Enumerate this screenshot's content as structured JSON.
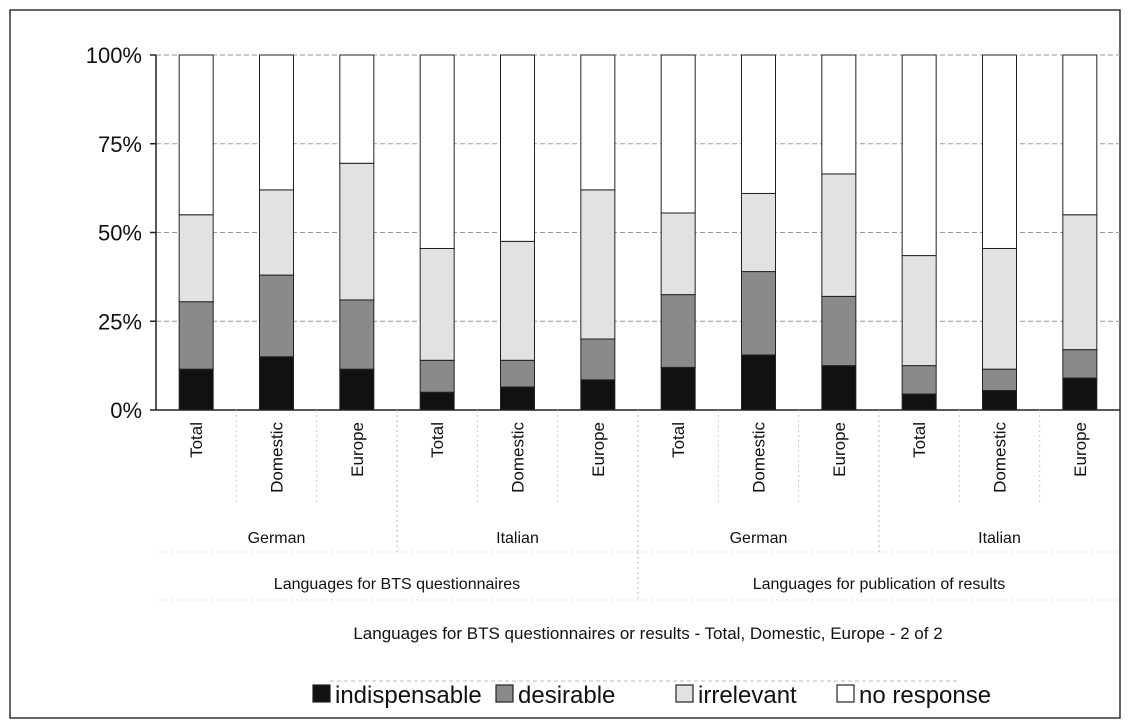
{
  "chart_data": {
    "type": "bar",
    "stacked": true,
    "title": "",
    "xlabel": "Languages for BTS questionnaires or results - Total, Domestic, Europe - 2 of 2",
    "ylabel": "",
    "ylim": [
      0,
      100
    ],
    "y_ticks": [
      "0%",
      "25%",
      "50%",
      "75%",
      "100%"
    ],
    "grid": "horizontal dashed",
    "legend_position": "bottom",
    "categories": [
      "Total",
      "Domestic",
      "Europe",
      "Total",
      "Domestic",
      "Europe",
      "Total",
      "Domestic",
      "Europe",
      "Total",
      "Domestic",
      "Europe"
    ],
    "groups_level1": [
      {
        "label": "German",
        "span": 3
      },
      {
        "label": "Italian",
        "span": 3
      },
      {
        "label": "German",
        "span": 3
      },
      {
        "label": "Italian",
        "span": 3
      }
    ],
    "groups_level2": [
      {
        "label": "Languages for BTS questionnaires",
        "span": 6
      },
      {
        "label": "Languages for publication of results",
        "span": 6
      }
    ],
    "series": [
      {
        "name": "indispensable",
        "color": "#111111",
        "values": [
          11.5,
          15,
          11.5,
          5,
          6.5,
          8.5,
          12,
          15.5,
          12.5,
          4.5,
          5.5,
          9
        ]
      },
      {
        "name": "desirable",
        "color": "#8a8a8a",
        "values": [
          19,
          23,
          19.5,
          9,
          7.5,
          11.5,
          20.5,
          23.5,
          19.5,
          8,
          6,
          8
        ]
      },
      {
        "name": "irrelevant",
        "color": "#e2e2e2",
        "values": [
          24.5,
          24,
          38.5,
          31.5,
          33.5,
          42,
          23,
          22,
          34.5,
          31,
          34,
          38
        ]
      },
      {
        "name": "no response",
        "color": "#ffffff",
        "values": [
          45,
          38,
          30.5,
          54.5,
          52.5,
          38,
          44.5,
          39,
          33.5,
          56.5,
          54.5,
          45
        ]
      }
    ]
  }
}
